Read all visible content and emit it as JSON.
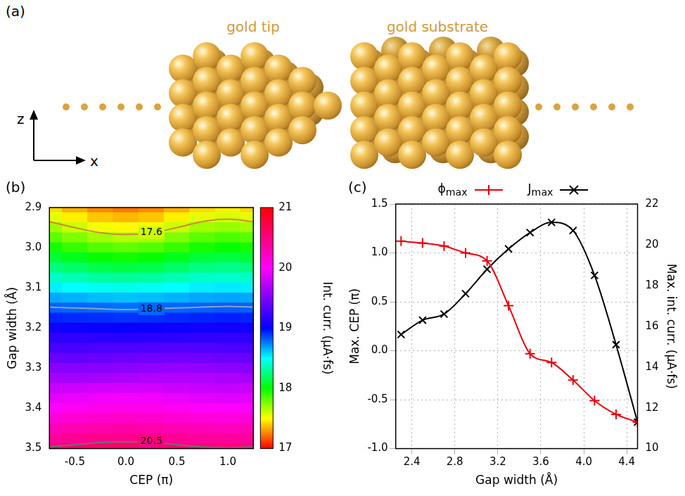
{
  "diagram": {
    "panel_label": "(a)",
    "labels": [
      "gold tip",
      "gold substrate"
    ],
    "axis_labels": [
      "z",
      "x"
    ]
  },
  "chart_data": [
    {
      "type": "heatmap",
      "panel_label": "(b)",
      "x_label": "CEP (π)",
      "y_label": "Gap width (Å)",
      "x": [
        -0.75,
        -0.5,
        -0.25,
        0,
        0.25,
        0.5,
        0.75,
        1.0,
        1.25
      ],
      "y": [
        2.9,
        2.925,
        2.95,
        2.975,
        3.0,
        3.025,
        3.05,
        3.075,
        3.1,
        3.125,
        3.15,
        3.175,
        3.2,
        3.225,
        3.25,
        3.275,
        3.3,
        3.325,
        3.35,
        3.375,
        3.4,
        3.425,
        3.45,
        3.475,
        3.5
      ],
      "cells": [
        [
          17.43,
          17.35,
          17.27,
          17.23,
          17.27,
          17.35,
          17.43,
          17.47,
          17.43
        ],
        [
          17.55,
          17.47,
          17.39,
          17.36,
          17.39,
          17.47,
          17.55,
          17.58,
          17.55
        ],
        [
          17.68,
          17.6,
          17.52,
          17.49,
          17.52,
          17.6,
          17.68,
          17.71,
          17.68
        ],
        [
          17.82,
          17.75,
          17.68,
          17.65,
          17.68,
          17.75,
          17.82,
          17.85,
          17.82
        ],
        [
          17.96,
          17.9,
          17.84,
          17.81,
          17.84,
          17.9,
          17.96,
          17.99,
          17.96
        ],
        [
          18.11,
          18.05,
          17.99,
          17.97,
          17.99,
          18.05,
          18.11,
          18.13,
          18.11
        ],
        [
          18.25,
          18.2,
          18.15,
          18.13,
          18.15,
          18.2,
          18.25,
          18.27,
          18.25
        ],
        [
          18.39,
          18.35,
          18.31,
          18.3,
          18.31,
          18.35,
          18.39,
          18.4,
          18.39
        ],
        [
          18.53,
          18.5,
          18.47,
          18.46,
          18.47,
          18.5,
          18.53,
          18.54,
          18.53
        ],
        [
          18.67,
          18.65,
          18.63,
          18.62,
          18.63,
          18.65,
          18.67,
          18.68,
          18.67
        ],
        [
          18.81,
          18.8,
          18.79,
          18.78,
          18.79,
          18.8,
          18.81,
          18.82,
          18.81
        ],
        [
          18.93,
          18.92,
          18.91,
          18.9,
          18.91,
          18.92,
          18.93,
          18.94,
          18.93
        ],
        [
          19.06,
          19.05,
          19.04,
          19.03,
          19.04,
          19.05,
          19.06,
          19.07,
          19.06
        ],
        [
          19.18,
          19.17,
          19.16,
          19.15,
          19.16,
          19.17,
          19.18,
          19.19,
          19.18
        ],
        [
          19.29,
          19.28,
          19.29,
          19.3,
          19.31,
          19.32,
          19.31,
          19.3,
          19.29
        ],
        [
          19.4,
          19.39,
          19.4,
          19.42,
          19.44,
          19.45,
          19.44,
          19.42,
          19.4
        ],
        [
          19.53,
          19.52,
          19.53,
          19.55,
          19.57,
          19.58,
          19.57,
          19.55,
          19.53
        ],
        [
          19.65,
          19.64,
          19.65,
          19.67,
          19.69,
          19.7,
          19.69,
          19.67,
          19.65
        ],
        [
          19.78,
          19.8,
          19.82,
          19.83,
          19.82,
          19.8,
          19.78,
          19.77,
          19.78
        ],
        [
          19.89,
          19.92,
          19.95,
          19.96,
          19.95,
          19.92,
          19.89,
          19.88,
          19.89
        ],
        [
          20.02,
          20.05,
          20.08,
          20.09,
          20.08,
          20.05,
          20.02,
          20.01,
          20.02
        ],
        [
          20.14,
          20.17,
          20.2,
          20.21,
          20.2,
          20.17,
          20.14,
          20.13,
          20.14
        ],
        [
          20.27,
          20.3,
          20.33,
          20.34,
          20.33,
          20.3,
          20.27,
          20.26,
          20.27
        ],
        [
          20.39,
          20.42,
          20.45,
          20.46,
          20.45,
          20.42,
          20.39,
          20.38,
          20.39
        ],
        [
          20.52,
          20.55,
          20.58,
          20.59,
          20.58,
          20.55,
          20.52,
          20.51,
          20.52
        ]
      ],
      "xlim": [
        -0.75,
        1.25
      ],
      "xticks": [
        -0.5,
        {
          "value": 0,
          "label": "0.0"
        },
        0.5,
        {
          "value": 1,
          "label": "1.0"
        }
      ],
      "ylim": [
        3.5,
        2.9
      ],
      "yticks": [
        2.9,
        {
          "value": 3,
          "label": "3.0"
        },
        3.1,
        3.2,
        3.3,
        3.4,
        3.5
      ],
      "colorbar": {
        "label": "Int. curr. (μA·fs)",
        "range": [
          17,
          21
        ],
        "ticks": [
          17,
          18,
          19,
          20,
          21
        ]
      },
      "contours": [
        {
          "level": 17.6,
          "color": "#c98a3a",
          "x": [
            -0.75,
            -0.5,
            -0.25,
            0,
            0.25,
            0.5,
            0.75,
            1.0,
            1.25
          ],
          "y": [
            2.935,
            2.95,
            2.9625,
            2.967,
            2.9625,
            2.95,
            2.935,
            2.929,
            2.935
          ]
        },
        {
          "level": 18.8,
          "color": "#8aa4bc",
          "x": [
            -0.75,
            -0.5,
            -0.25,
            0,
            0.25,
            0.5,
            0.75,
            1.0,
            1.25
          ],
          "y": [
            3.148,
            3.15,
            3.152,
            3.154,
            3.152,
            3.15,
            3.148,
            3.146,
            3.148
          ]
        },
        {
          "level": 20.5,
          "color": "#707070",
          "x": [
            -0.75,
            -0.5,
            -0.25,
            0,
            0.25,
            0.5,
            0.75,
            1.0,
            1.25
          ],
          "y": [
            3.496,
            3.49,
            3.485,
            3.483,
            3.485,
            3.49,
            3.496,
            3.498,
            3.496
          ]
        }
      ]
    },
    {
      "type": "line",
      "panel_label": "(c)",
      "x_label": "Gap width (Å)",
      "y_label": "Max. CEP (π)",
      "y2_label": "Max. int. curr. (μA·fs)",
      "x": [
        2.3,
        2.5,
        2.7,
        2.9,
        3.1,
        3.3,
        3.5,
        3.7,
        3.9,
        4.1,
        4.3,
        4.5
      ],
      "series": [
        {
          "name": "ϕmax",
          "color": "#e8000b",
          "marker": "plus",
          "values": [
            1.12,
            1.1,
            1.07,
            1.0,
            0.92,
            0.46,
            -0.03,
            -0.12,
            -0.3,
            -0.51,
            -0.65,
            -0.73
          ]
        },
        {
          "name": "Jmax",
          "color": "#000000",
          "marker": "x",
          "axis": "y2",
          "values": [
            15.6,
            16.3,
            16.6,
            17.6,
            18.8,
            19.8,
            20.6,
            21.1,
            20.7,
            18.5,
            15.1,
            11.3
          ]
        }
      ],
      "xlim": [
        2.25,
        4.5
      ],
      "xticks": [
        2.4,
        2.8,
        3.2,
        3.6,
        {
          "value": 4,
          "label": "4.0"
        },
        4.4
      ],
      "ylim": [
        -1,
        1.5
      ],
      "yticks": [
        {
          "value": -1,
          "label": "-1.0"
        },
        -0.5,
        {
          "value": 0,
          "label": "0.0"
        },
        0.5,
        {
          "value": 1,
          "label": "1.0"
        },
        1.5
      ],
      "y2lim": [
        10,
        22
      ],
      "y2ticks": [
        10,
        12,
        14,
        16,
        18,
        20,
        22
      ],
      "grid": true,
      "legend": "top"
    }
  ]
}
